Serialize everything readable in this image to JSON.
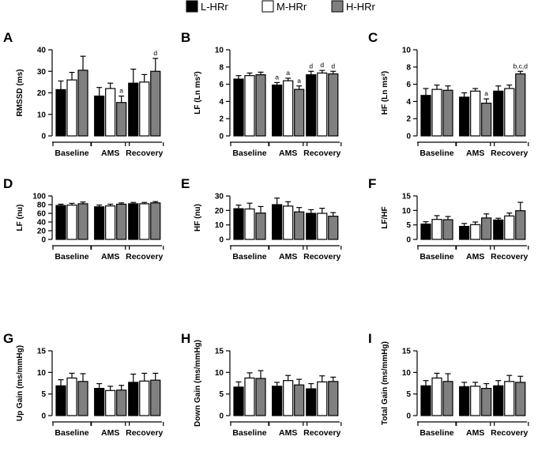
{
  "legend": [
    {
      "label": "L-HRr",
      "fill": "#000000"
    },
    {
      "label": "M-HRr",
      "fill": "#ffffff"
    },
    {
      "label": "H-HRr",
      "fill": "#808080"
    }
  ],
  "colors": {
    "L-HRr": "#000000",
    "M-HRr": "#ffffff",
    "H-HRr": "#808080",
    "axis": "#000000"
  },
  "chart_data": [
    {
      "panel": "A",
      "type": "bar",
      "ylabel": "RMSSD (ms)",
      "ylim": [
        0,
        40
      ],
      "yticks": [
        "0",
        "10",
        "20",
        "30",
        "40"
      ],
      "categories": [
        "Baseline",
        "AMS",
        "Recovery"
      ],
      "series": [
        {
          "name": "L-HRr",
          "values": [
            21.5,
            18.5,
            24.5
          ],
          "errors": [
            4,
            4,
            6.5
          ]
        },
        {
          "name": "M-HRr",
          "values": [
            26,
            22,
            25
          ],
          "errors": [
            3.5,
            2.5,
            3.5
          ]
        },
        {
          "name": "H-HRr",
          "values": [
            30.5,
            15.5,
            30
          ],
          "errors": [
            6.5,
            3,
            6
          ]
        }
      ],
      "annotations": [
        {
          "category": "AMS",
          "series": "H-HRr",
          "text": "a"
        },
        {
          "category": "Recovery",
          "series": "H-HRr",
          "text": "d"
        }
      ]
    },
    {
      "panel": "B",
      "type": "bar",
      "ylabel": "LF (Ln ms²)",
      "ylim": [
        0,
        10
      ],
      "yticks": [
        "0",
        "2",
        "4",
        "6",
        "8",
        "10"
      ],
      "categories": [
        "Baseline",
        "AMS",
        "Recovery"
      ],
      "series": [
        {
          "name": "L-HRr",
          "values": [
            6.6,
            5.9,
            7.1
          ],
          "errors": [
            0.4,
            0.3,
            0.4
          ]
        },
        {
          "name": "M-HRr",
          "values": [
            7.0,
            6.4,
            7.3
          ],
          "errors": [
            0.3,
            0.3,
            0.3
          ]
        },
        {
          "name": "H-HRr",
          "values": [
            7.1,
            5.4,
            7.2
          ],
          "errors": [
            0.3,
            0.4,
            0.3
          ]
        }
      ],
      "annotations": [
        {
          "category": "AMS",
          "series": "L-HRr",
          "text": "a"
        },
        {
          "category": "AMS",
          "series": "M-HRr",
          "text": "a"
        },
        {
          "category": "AMS",
          "series": "H-HRr",
          "text": "a"
        },
        {
          "category": "Recovery",
          "series": "L-HRr",
          "text": "d"
        },
        {
          "category": "Recovery",
          "series": "M-HRr",
          "text": "d"
        },
        {
          "category": "Recovery",
          "series": "H-HRr",
          "text": "d"
        }
      ]
    },
    {
      "panel": "C",
      "type": "bar",
      "ylabel": "HF (Ln ms²)",
      "ylim": [
        0,
        10
      ],
      "yticks": [
        "0",
        "2",
        "4",
        "6",
        "8",
        "10"
      ],
      "categories": [
        "Baseline",
        "AMS",
        "Recovery"
      ],
      "series": [
        {
          "name": "L-HRr",
          "values": [
            4.7,
            4.5,
            5.2
          ],
          "errors": [
            0.8,
            0.5,
            0.6
          ]
        },
        {
          "name": "M-HRr",
          "values": [
            5.4,
            5.2,
            5.5
          ],
          "errors": [
            0.5,
            0.3,
            0.4
          ]
        },
        {
          "name": "H-HRr",
          "values": [
            5.3,
            3.8,
            7.2
          ],
          "errors": [
            0.5,
            0.5,
            0.3
          ]
        }
      ],
      "annotations": [
        {
          "category": "AMS",
          "series": "H-HRr",
          "text": "a"
        },
        {
          "category": "Recovery",
          "series": "H-HRr",
          "text": "b,c,d"
        }
      ]
    },
    {
      "panel": "D",
      "type": "bar",
      "ylabel": "LF (nu)",
      "ylim": [
        0,
        100
      ],
      "yticks": [
        "0",
        "20",
        "40",
        "60",
        "80",
        "100"
      ],
      "categories": [
        "Baseline",
        "AMS",
        "Recovery"
      ],
      "series": [
        {
          "name": "L-HRr",
          "values": [
            78,
            75,
            82
          ],
          "errors": [
            3,
            4,
            3
          ]
        },
        {
          "name": "M-HRr",
          "values": [
            79,
            77,
            82
          ],
          "errors": [
            4,
            4,
            3
          ]
        },
        {
          "name": "H-HRr",
          "values": [
            82,
            81,
            84
          ],
          "errors": [
            4,
            3,
            3
          ]
        }
      ],
      "annotations": []
    },
    {
      "panel": "E",
      "type": "bar",
      "ylabel": "HF (nu)",
      "ylim": [
        0,
        30
      ],
      "yticks": [
        "0",
        "10",
        "20",
        "30"
      ],
      "categories": [
        "Baseline",
        "AMS",
        "Recovery"
      ],
      "series": [
        {
          "name": "L-HRr",
          "values": [
            21.2,
            24,
            18
          ],
          "errors": [
            2.5,
            4.5,
            2.5
          ]
        },
        {
          "name": "M-HRr",
          "values": [
            21,
            23,
            18
          ],
          "errors": [
            4,
            3,
            3.5
          ]
        },
        {
          "name": "H-HRr",
          "values": [
            18.2,
            19,
            16
          ],
          "errors": [
            4.5,
            3,
            2.5
          ]
        }
      ],
      "annotations": []
    },
    {
      "panel": "F",
      "type": "bar",
      "ylabel": "LF/HF",
      "ylim": [
        0,
        15
      ],
      "yticks": [
        "0",
        "5",
        "10",
        "15"
      ],
      "categories": [
        "Baseline",
        "AMS",
        "Recovery"
      ],
      "series": [
        {
          "name": "L-HRr",
          "values": [
            5.3,
            4.5,
            6.7
          ],
          "errors": [
            0.8,
            1.0,
            0.6
          ]
        },
        {
          "name": "M-HRr",
          "values": [
            6.9,
            5.1,
            8.1
          ],
          "errors": [
            1.3,
            0.9,
            1.0
          ]
        },
        {
          "name": "H-HRr",
          "values": [
            6.8,
            7.4,
            9.9
          ],
          "errors": [
            1.1,
            1.4,
            2.9
          ]
        }
      ],
      "annotations": []
    },
    {
      "panel": "G",
      "type": "bar",
      "ylabel": "Up Gain (ms/mmHg)",
      "ylim": [
        0,
        15
      ],
      "yticks": [
        "0",
        "5",
        "10",
        "15"
      ],
      "categories": [
        "Baseline",
        "AMS",
        "Recovery"
      ],
      "series": [
        {
          "name": "L-HRr",
          "values": [
            6.9,
            6.3,
            7.7
          ],
          "errors": [
            1.4,
            1.1,
            1.9
          ]
        },
        {
          "name": "M-HRr",
          "values": [
            8.7,
            5.8,
            8.0
          ],
          "errors": [
            1.1,
            1.0,
            1.8
          ]
        },
        {
          "name": "H-HRr",
          "values": [
            7.9,
            5.9,
            8.2
          ],
          "errors": [
            1.8,
            1.1,
            1.6
          ]
        }
      ],
      "annotations": []
    },
    {
      "panel": "H",
      "type": "bar",
      "ylabel": "Down Gain (ms/mmHg)",
      "ylim": [
        0,
        15
      ],
      "yticks": [
        "0",
        "5",
        "10",
        "15"
      ],
      "categories": [
        "Baseline",
        "AMS",
        "Recovery"
      ],
      "series": [
        {
          "name": "L-HRr",
          "values": [
            6.6,
            6.8,
            6.2
          ],
          "errors": [
            1.2,
            0.9,
            1.2
          ]
        },
        {
          "name": "M-HRr",
          "values": [
            8.7,
            8.1,
            7.8
          ],
          "errors": [
            1.2,
            1.2,
            1.4
          ]
        },
        {
          "name": "H-HRr",
          "values": [
            8.6,
            7.1,
            7.9
          ],
          "errors": [
            1.8,
            1.3,
            1.0
          ]
        }
      ],
      "annotations": []
    },
    {
      "panel": "I",
      "type": "bar",
      "ylabel": "Total Gain (ms/mmHg)",
      "ylim": [
        0,
        15
      ],
      "yticks": [
        "0",
        "5",
        "10",
        "15"
      ],
      "categories": [
        "Baseline",
        "AMS",
        "Recovery"
      ],
      "series": [
        {
          "name": "L-HRr",
          "values": [
            6.9,
            6.7,
            6.9
          ],
          "errors": [
            1.2,
            1.0,
            1.2
          ]
        },
        {
          "name": "M-HRr",
          "values": [
            8.7,
            6.8,
            7.9
          ],
          "errors": [
            1.1,
            0.9,
            1.4
          ]
        },
        {
          "name": "H-HRr",
          "values": [
            7.9,
            6.3,
            7.7
          ],
          "errors": [
            1.8,
            1.1,
            1.4
          ]
        }
      ],
      "annotations": []
    }
  ]
}
